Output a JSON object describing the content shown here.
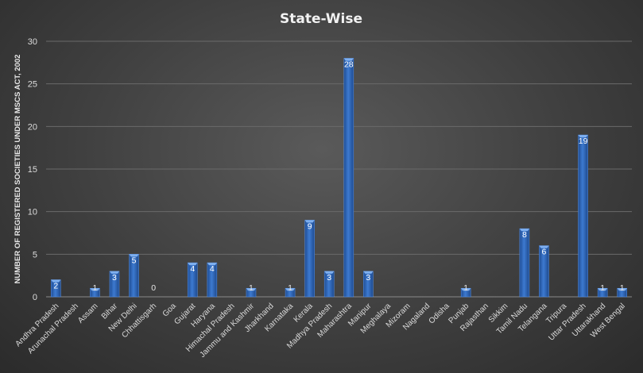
{
  "chart_data": {
    "type": "bar",
    "title": "State-Wise",
    "xlabel": "",
    "ylabel": "NUMBER OF REGISTERED SOCIETIES UNDER MSCS ACT, 2002",
    "ylim": [
      0,
      30
    ],
    "yticks": [
      0,
      5,
      10,
      15,
      20,
      25,
      30
    ],
    "grid": true,
    "bar_color": "#2e64b4",
    "categories": [
      "Andhra Pradesh",
      "Arunachal Pradesh",
      "Assam",
      "Bihar",
      "New Delhi",
      "Chhattisgarh",
      "Goa",
      "Gujarat",
      "Haryana",
      "Himachal Pradesh",
      "Jammu and Kashmir",
      "Jharkhand",
      "Karnataka",
      "Kerala",
      "Madhya Pradesh",
      "Maharashtra",
      "Manipur",
      "Meghalaya",
      "Mizoram",
      "Nagaland",
      "Odisha",
      "Punjab",
      "Rajasthan",
      "Sikkim",
      "Tamil Nadu",
      "Telangana",
      "Tripura",
      "Uttar Pradesh",
      "Uttarakhand",
      "West Bengal"
    ],
    "values": [
      2,
      null,
      1,
      3,
      5,
      0,
      null,
      4,
      4,
      null,
      1,
      null,
      1,
      9,
      3,
      28,
      3,
      null,
      null,
      null,
      null,
      1,
      null,
      null,
      8,
      6,
      null,
      19,
      1,
      1
    ]
  }
}
